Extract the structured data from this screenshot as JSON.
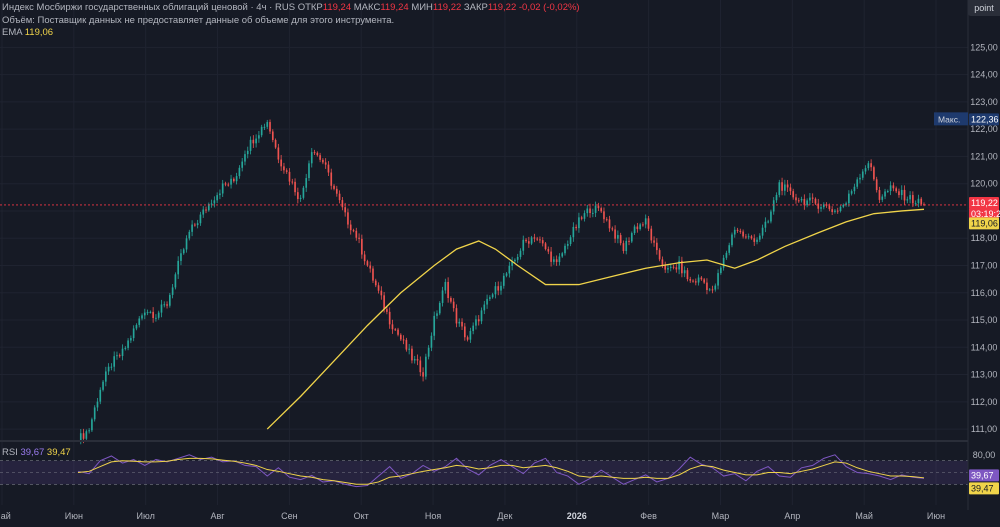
{
  "header": {
    "title": "Индекс Мосбиржи государственных облигаций ценовой · 4ч · RUS",
    "open_label": "ОТКР",
    "open": "119,24",
    "high_label": "МАКС",
    "high": "119,24",
    "low_label": "МИН",
    "low": "119,22",
    "close_label": "ЗАКР",
    "close": "119,22",
    "change": "-0,02 (-0,02%)",
    "volume_note": "Объём: Поставщик данных не предоставляет данные об объеме для этого инструмента.",
    "ema_label": "EMA",
    "ema_value": "119,06"
  },
  "toolbar": {
    "point_label": "point"
  },
  "rsi_legend": {
    "label": "RSI",
    "value1": "39,67",
    "value2": "39,47"
  },
  "colors": {
    "background": "#161a25",
    "up": "#26a69a",
    "down": "#ef5350",
    "ema": "#f0d44a",
    "rsi": "#7e57c2",
    "rsi_ma": "#f0d44a",
    "price_tag": "#f23645",
    "max_tag": "#1e3a6e"
  },
  "chart_data": [
    {
      "type": "candlestick",
      "title": "",
      "ylim": [
        110.6,
        125.6
      ],
      "yticks": [
        "125,00",
        "124,00",
        "123,00",
        "122,00",
        "121,00",
        "120,00",
        "119,00",
        "118,00",
        "117,00",
        "116,00",
        "115,00",
        "114,00",
        "113,00",
        "112,00",
        "111,00"
      ],
      "xticks": [
        "Май",
        "Июн",
        "Июл",
        "Авг",
        "Сен",
        "Окт",
        "Ноя",
        "Дек",
        "2026",
        "Фев",
        "Мар",
        "Апр",
        "Май",
        "Июн"
      ],
      "close_path": [
        [
          0,
          110.6
        ],
        [
          4,
          111.0
        ],
        [
          8,
          112.5
        ],
        [
          12,
          113.4
        ],
        [
          16,
          113.8
        ],
        [
          20,
          114.6
        ],
        [
          24,
          115.4
        ],
        [
          28,
          115.2
        ],
        [
          32,
          115.6
        ],
        [
          36,
          117.0
        ],
        [
          40,
          118.2
        ],
        [
          44,
          118.8
        ],
        [
          48,
          119.4
        ],
        [
          52,
          119.9
        ],
        [
          56,
          120.1
        ],
        [
          60,
          121.2
        ],
        [
          64,
          121.8
        ],
        [
          68,
          122.3
        ],
        [
          72,
          121.0
        ],
        [
          76,
          120.2
        ],
        [
          80,
          119.4
        ],
        [
          84,
          121.3
        ],
        [
          88,
          120.8
        ],
        [
          92,
          119.8
        ],
        [
          96,
          118.8
        ],
        [
          100,
          118.1
        ],
        [
          104,
          117.0
        ],
        [
          108,
          116.0
        ],
        [
          112,
          115.0
        ],
        [
          116,
          114.3
        ],
        [
          120,
          113.6
        ],
        [
          124,
          113.1
        ],
        [
          128,
          115.0
        ],
        [
          132,
          116.3
        ],
        [
          136,
          115.0
        ],
        [
          140,
          114.3
        ],
        [
          144,
          115.1
        ],
        [
          148,
          115.8
        ],
        [
          152,
          116.4
        ],
        [
          156,
          117.0
        ],
        [
          160,
          117.8
        ],
        [
          164,
          118.1
        ],
        [
          168,
          117.6
        ],
        [
          172,
          117.0
        ],
        [
          176,
          117.9
        ],
        [
          180,
          118.6
        ],
        [
          184,
          119.1
        ],
        [
          188,
          119.0
        ],
        [
          192,
          118.3
        ],
        [
          196,
          117.6
        ],
        [
          200,
          118.4
        ],
        [
          204,
          118.6
        ],
        [
          208,
          117.4
        ],
        [
          212,
          116.8
        ],
        [
          216,
          117.0
        ],
        [
          220,
          116.4
        ],
        [
          224,
          116.5
        ],
        [
          228,
          116.0
        ],
        [
          232,
          117.2
        ],
        [
          236,
          118.4
        ],
        [
          240,
          118.0
        ],
        [
          244,
          118.0
        ],
        [
          248,
          118.6
        ],
        [
          252,
          120.0
        ],
        [
          256,
          119.6
        ],
        [
          260,
          119.4
        ],
        [
          264,
          119.3
        ],
        [
          268,
          119.2
        ],
        [
          272,
          119.0
        ],
        [
          276,
          119.3
        ],
        [
          280,
          120.2
        ],
        [
          284,
          120.8
        ],
        [
          288,
          119.5
        ],
        [
          292,
          119.8
        ],
        [
          296,
          119.6
        ],
        [
          300,
          119.4
        ],
        [
          304,
          119.22
        ]
      ],
      "ema_path": [
        [
          68,
          111.0
        ],
        [
          80,
          112.2
        ],
        [
          92,
          113.5
        ],
        [
          104,
          114.8
        ],
        [
          116,
          116.0
        ],
        [
          128,
          117.0
        ],
        [
          136,
          117.6
        ],
        [
          144,
          117.9
        ],
        [
          150,
          117.6
        ],
        [
          158,
          117.0
        ],
        [
          168,
          116.3
        ],
        [
          180,
          116.3
        ],
        [
          192,
          116.6
        ],
        [
          204,
          116.9
        ],
        [
          216,
          117.1
        ],
        [
          226,
          117.2
        ],
        [
          236,
          116.9
        ],
        [
          244,
          117.2
        ],
        [
          254,
          117.7
        ],
        [
          266,
          118.2
        ],
        [
          276,
          118.6
        ],
        [
          286,
          118.9
        ],
        [
          296,
          119.0
        ],
        [
          304,
          119.06
        ]
      ],
      "last_price": "119,22",
      "timer": "03:19:2",
      "ema_tag": "119,06",
      "max_label": "Макс.",
      "max_value": "122,36"
    },
    {
      "type": "line",
      "title": "RSI",
      "ylim": [
        0,
        100
      ],
      "yticks": [
        "80,00"
      ],
      "band": [
        30,
        70
      ],
      "series": [
        {
          "name": "RSI",
          "values": [
            52,
            48,
            70,
            78,
            66,
            72,
            62,
            72,
            68,
            74,
            80,
            72,
            76,
            68,
            70,
            62,
            60,
            44,
            58,
            42,
            38,
            45,
            34,
            36,
            30,
            26,
            28,
            44,
            60,
            40,
            48,
            62,
            52,
            60,
            74,
            56,
            46,
            62,
            72,
            60,
            48,
            66,
            74,
            50,
            44,
            30,
            40,
            54,
            42,
            30,
            38,
            46,
            34,
            40,
            56,
            76,
            64,
            58,
            44,
            48,
            36,
            52,
            60,
            44,
            42,
            58,
            62,
            74,
            80,
            60,
            50,
            48,
            44,
            38,
            46,
            42,
            40
          ]
        },
        {
          "name": "RSI MA",
          "values": [
            50,
            52,
            60,
            68,
            70,
            69,
            68,
            68,
            69,
            72,
            74,
            74,
            73,
            71,
            69,
            66,
            62,
            55,
            52,
            48,
            44,
            42,
            38,
            36,
            33,
            30,
            30,
            34,
            42,
            44,
            48,
            52,
            55,
            58,
            62,
            60,
            56,
            58,
            62,
            62,
            58,
            60,
            62,
            58,
            52,
            44,
            42,
            44,
            42,
            40,
            40,
            42,
            40,
            40,
            46,
            56,
            62,
            60,
            54,
            50,
            46,
            46,
            50,
            50,
            48,
            52,
            56,
            62,
            68,
            66,
            58,
            52,
            48,
            44,
            44,
            43,
            41
          ]
        }
      ],
      "last_values": [
        "39,67",
        "39,47"
      ]
    }
  ]
}
